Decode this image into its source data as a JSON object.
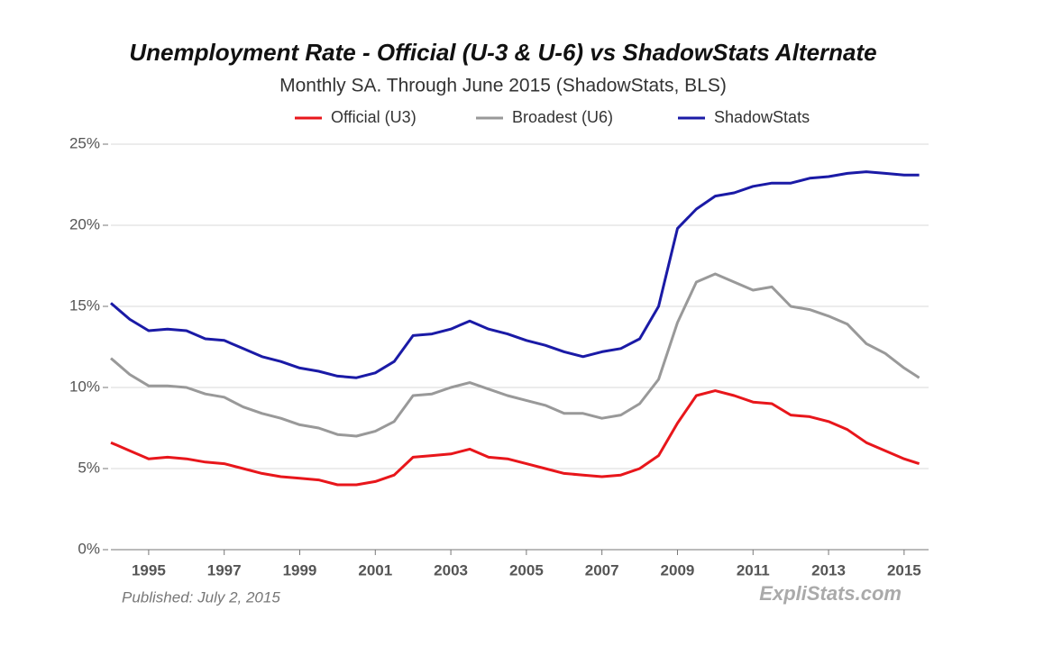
{
  "chart_data": {
    "type": "line",
    "title": "Unemployment Rate - Official (U-3 & U-6) vs ShadowStats Alternate",
    "subtitle": "Monthly SA. Through June 2015  (ShadowStats, BLS)",
    "note": "Published: July 2, 2015",
    "source": "ExpliStats.com",
    "legend": "top",
    "grid": true,
    "x": [
      1994,
      1994.5,
      1995,
      1995.5,
      1996,
      1996.5,
      1997,
      1997.5,
      1998,
      1998.5,
      1999,
      1999.5,
      2000,
      2000.5,
      2001,
      2001.5,
      2002,
      2002.5,
      2003,
      2003.5,
      2004,
      2004.5,
      2005,
      2005.5,
      2006,
      2006.5,
      2007,
      2007.5,
      2008,
      2008.5,
      2009,
      2009.5,
      2010,
      2010.5,
      2011,
      2011.5,
      2012,
      2012.5,
      2013,
      2013.5,
      2014,
      2014.5,
      2015,
      2015.4
    ],
    "xlim": [
      1994,
      2015.6
    ],
    "xticks": [
      1995,
      1997,
      1999,
      2001,
      2003,
      2005,
      2007,
      2009,
      2011,
      2013,
      2015
    ],
    "ylim": [
      0,
      25
    ],
    "yticks": [
      {
        "value": 0,
        "label": "0%"
      },
      {
        "value": 5,
        "label": "5%"
      },
      {
        "value": 10,
        "label": "10%"
      },
      {
        "value": 15,
        "label": "15%"
      },
      {
        "value": 20,
        "label": "20%"
      },
      {
        "value": 25,
        "label": "25%"
      }
    ],
    "series": [
      {
        "name": "Official (U3)",
        "color": "#e8161b",
        "values": [
          6.6,
          6.1,
          5.6,
          5.7,
          5.6,
          5.4,
          5.3,
          5.0,
          4.7,
          4.5,
          4.4,
          4.3,
          4.0,
          4.0,
          4.2,
          4.6,
          5.7,
          5.8,
          5.9,
          6.2,
          5.7,
          5.6,
          5.3,
          5.0,
          4.7,
          4.6,
          4.5,
          4.6,
          5.0,
          5.8,
          7.8,
          9.5,
          9.8,
          9.5,
          9.1,
          9.0,
          8.3,
          8.2,
          7.9,
          7.4,
          6.6,
          6.1,
          5.6,
          5.3
        ]
      },
      {
        "name": "Broadest (U6)",
        "color": "#999999",
        "values": [
          11.8,
          10.8,
          10.1,
          10.1,
          10.0,
          9.6,
          9.4,
          8.8,
          8.4,
          8.1,
          7.7,
          7.5,
          7.1,
          7.0,
          7.3,
          7.9,
          9.5,
          9.6,
          10.0,
          10.3,
          9.9,
          9.5,
          9.2,
          8.9,
          8.4,
          8.4,
          8.1,
          8.3,
          9.0,
          10.5,
          14.0,
          16.5,
          17.0,
          16.5,
          16.0,
          16.2,
          15.0,
          14.8,
          14.4,
          13.9,
          12.7,
          12.1,
          11.2,
          10.6
        ]
      },
      {
        "name": "ShadowStats",
        "color": "#1a1aa6",
        "values": [
          15.2,
          14.2,
          13.5,
          13.6,
          13.5,
          13.0,
          12.9,
          12.4,
          11.9,
          11.6,
          11.2,
          11.0,
          10.7,
          10.6,
          10.9,
          11.6,
          13.2,
          13.3,
          13.6,
          14.1,
          13.6,
          13.3,
          12.9,
          12.6,
          12.2,
          11.9,
          12.2,
          12.4,
          13.0,
          15.0,
          19.8,
          21.0,
          21.8,
          22.0,
          22.4,
          22.6,
          22.6,
          22.9,
          23.0,
          23.2,
          23.3,
          23.2,
          23.1,
          23.1
        ]
      }
    ]
  }
}
